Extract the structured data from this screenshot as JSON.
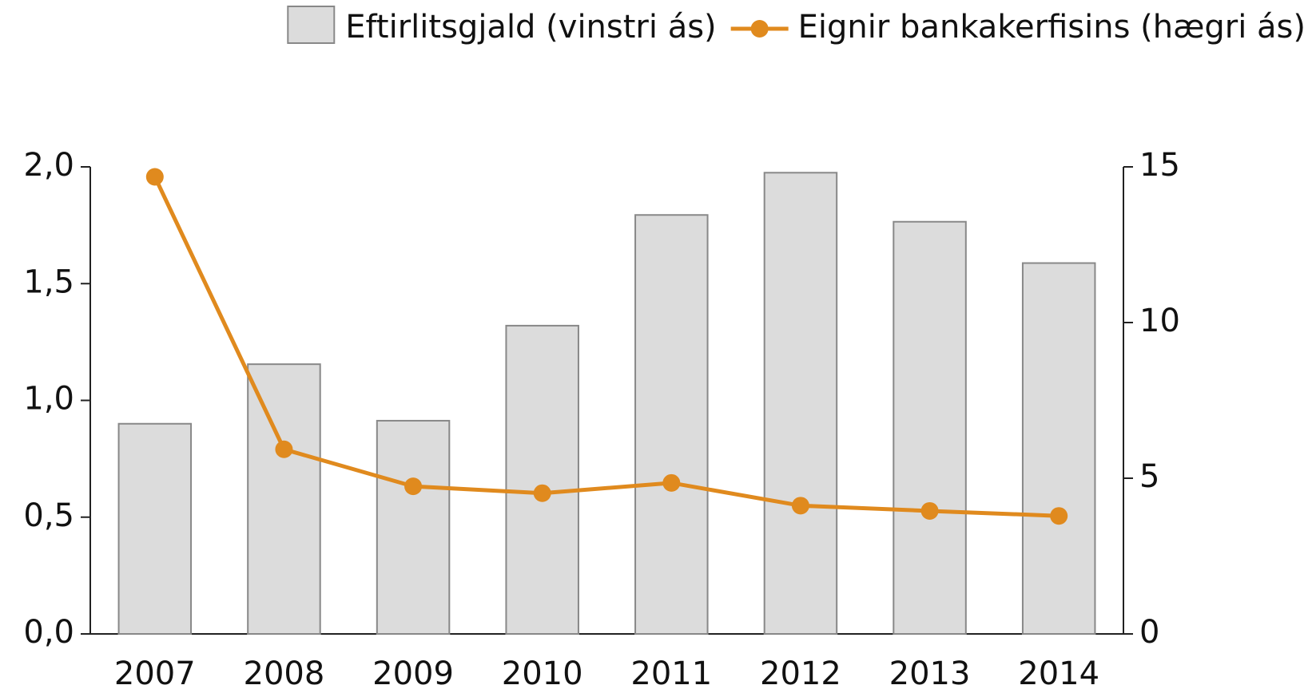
{
  "chart_data": {
    "type": "bar",
    "categories": [
      "2007",
      "2008",
      "2009",
      "2010",
      "2011",
      "2012",
      "2013",
      "2014"
    ],
    "series": [
      {
        "name": "Eftirlitsgjald (vinstri ás)",
        "type": "bar",
        "axis": "y",
        "color": "#dcdcdc",
        "values": [
          0.9,
          1.155,
          0.913,
          1.32,
          1.794,
          1.975,
          1.765,
          1.588
        ]
      },
      {
        "name": "Eignir bankakerfisins (hægri ás)",
        "type": "line",
        "axis": "y2",
        "color": "#e08a1e",
        "values": [
          14.68,
          5.93,
          4.74,
          4.52,
          4.85,
          4.12,
          3.95,
          3.79
        ]
      }
    ],
    "ylim": [
      0,
      2.0
    ],
    "yticks": [
      {
        "value": 0,
        "label": "0,0"
      },
      {
        "value": 0.5,
        "label": "0,5"
      },
      {
        "value": 1.0,
        "label": "1,0"
      },
      {
        "value": 1.5,
        "label": "1,5"
      },
      {
        "value": 2.0,
        "label": "2,0"
      }
    ],
    "y2lim": [
      0,
      15
    ],
    "y2ticks": [
      0,
      5,
      10,
      15
    ],
    "legend": "top-right",
    "grid": false
  }
}
